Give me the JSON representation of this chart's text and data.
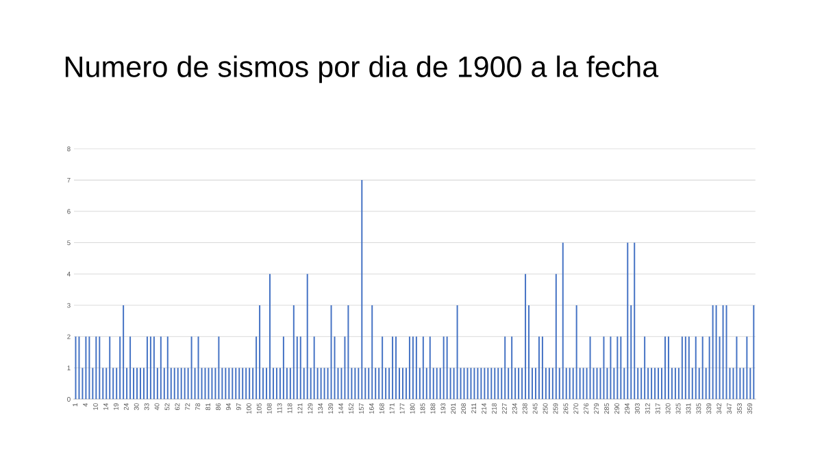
{
  "chart_data": {
    "type": "bar",
    "title": "Numero de sismos por dia de 1900 a la fecha",
    "categories": [
      "1",
      null,
      null,
      "4",
      null,
      null,
      "10",
      null,
      null,
      "14",
      null,
      null,
      "19",
      null,
      null,
      "24",
      null,
      null,
      "30",
      null,
      null,
      "33",
      null,
      null,
      "40",
      null,
      null,
      "52",
      null,
      null,
      "62",
      null,
      null,
      "72",
      null,
      null,
      "78",
      null,
      null,
      "81",
      null,
      null,
      "86",
      null,
      null,
      "94",
      null,
      null,
      "97",
      null,
      null,
      "100",
      null,
      null,
      "105",
      null,
      null,
      "108",
      null,
      null,
      "113",
      null,
      null,
      "118",
      null,
      null,
      "121",
      null,
      null,
      "129",
      null,
      null,
      "134",
      null,
      null,
      "139",
      null,
      null,
      "144",
      null,
      null,
      "152",
      null,
      null,
      "157",
      null,
      null,
      "164",
      null,
      null,
      "168",
      null,
      null,
      "171",
      null,
      null,
      "177",
      null,
      null,
      "180",
      null,
      null,
      "185",
      null,
      null,
      "188",
      null,
      null,
      "193",
      null,
      null,
      "201",
      null,
      null,
      "208",
      null,
      null,
      "211",
      null,
      null,
      "214",
      null,
      null,
      "218",
      null,
      null,
      "227",
      null,
      null,
      "234",
      null,
      null,
      "238",
      null,
      null,
      "245",
      null,
      null,
      "250",
      null,
      null,
      "259",
      null,
      null,
      "265",
      null,
      null,
      "270",
      null,
      null,
      "276",
      null,
      null,
      "279",
      null,
      null,
      "285",
      null,
      null,
      "290",
      null,
      null,
      "294",
      null,
      null,
      "303",
      null,
      null,
      "312",
      null,
      null,
      "317",
      null,
      null,
      "320",
      null,
      null,
      "325",
      null,
      null,
      "331",
      null,
      null,
      "335",
      null,
      null,
      "339",
      null,
      null,
      "342",
      null,
      null,
      "347",
      null,
      null,
      "353",
      null,
      null,
      "359",
      null
    ],
    "values": [
      2,
      2,
      1,
      2,
      2,
      1,
      2,
      2,
      1,
      1,
      2,
      1,
      1,
      2,
      3,
      1,
      2,
      1,
      1,
      1,
      1,
      2,
      2,
      2,
      1,
      2,
      1,
      2,
      1,
      1,
      1,
      1,
      1,
      1,
      2,
      1,
      2,
      1,
      1,
      1,
      1,
      1,
      2,
      1,
      1,
      1,
      1,
      1,
      1,
      1,
      1,
      1,
      1,
      2,
      3,
      1,
      1,
      4,
      1,
      1,
      1,
      2,
      1,
      1,
      3,
      2,
      2,
      1,
      4,
      1,
      2,
      1,
      1,
      1,
      1,
      3,
      2,
      1,
      1,
      2,
      3,
      1,
      1,
      1,
      7,
      1,
      1,
      3,
      1,
      1,
      2,
      1,
      1,
      2,
      2,
      1,
      1,
      1,
      2,
      2,
      2,
      1,
      2,
      1,
      2,
      1,
      1,
      1,
      2,
      2,
      1,
      1,
      3,
      1,
      1,
      1,
      1,
      1,
      1,
      1,
      1,
      1,
      1,
      1,
      1,
      1,
      2,
      1,
      2,
      1,
      1,
      1,
      4,
      3,
      1,
      1,
      2,
      2,
      1,
      1,
      1,
      4,
      1,
      5,
      1,
      1,
      1,
      3,
      1,
      1,
      1,
      2,
      1,
      1,
      1,
      2,
      1,
      2,
      1,
      2,
      2,
      1,
      5,
      3,
      5,
      1,
      1,
      2,
      1,
      1,
      1,
      1,
      1,
      2,
      2,
      1,
      1,
      1,
      2,
      2,
      2,
      1,
      2,
      1,
      2,
      1,
      2,
      3,
      3,
      2,
      3,
      3,
      1,
      1,
      2,
      1,
      1,
      2,
      1,
      3
    ],
    "color": "#4472c4",
    "ylim": [
      0,
      8
    ],
    "yticks": [
      0,
      1,
      2,
      3,
      4,
      5,
      6,
      7,
      8
    ],
    "grid": "y"
  }
}
